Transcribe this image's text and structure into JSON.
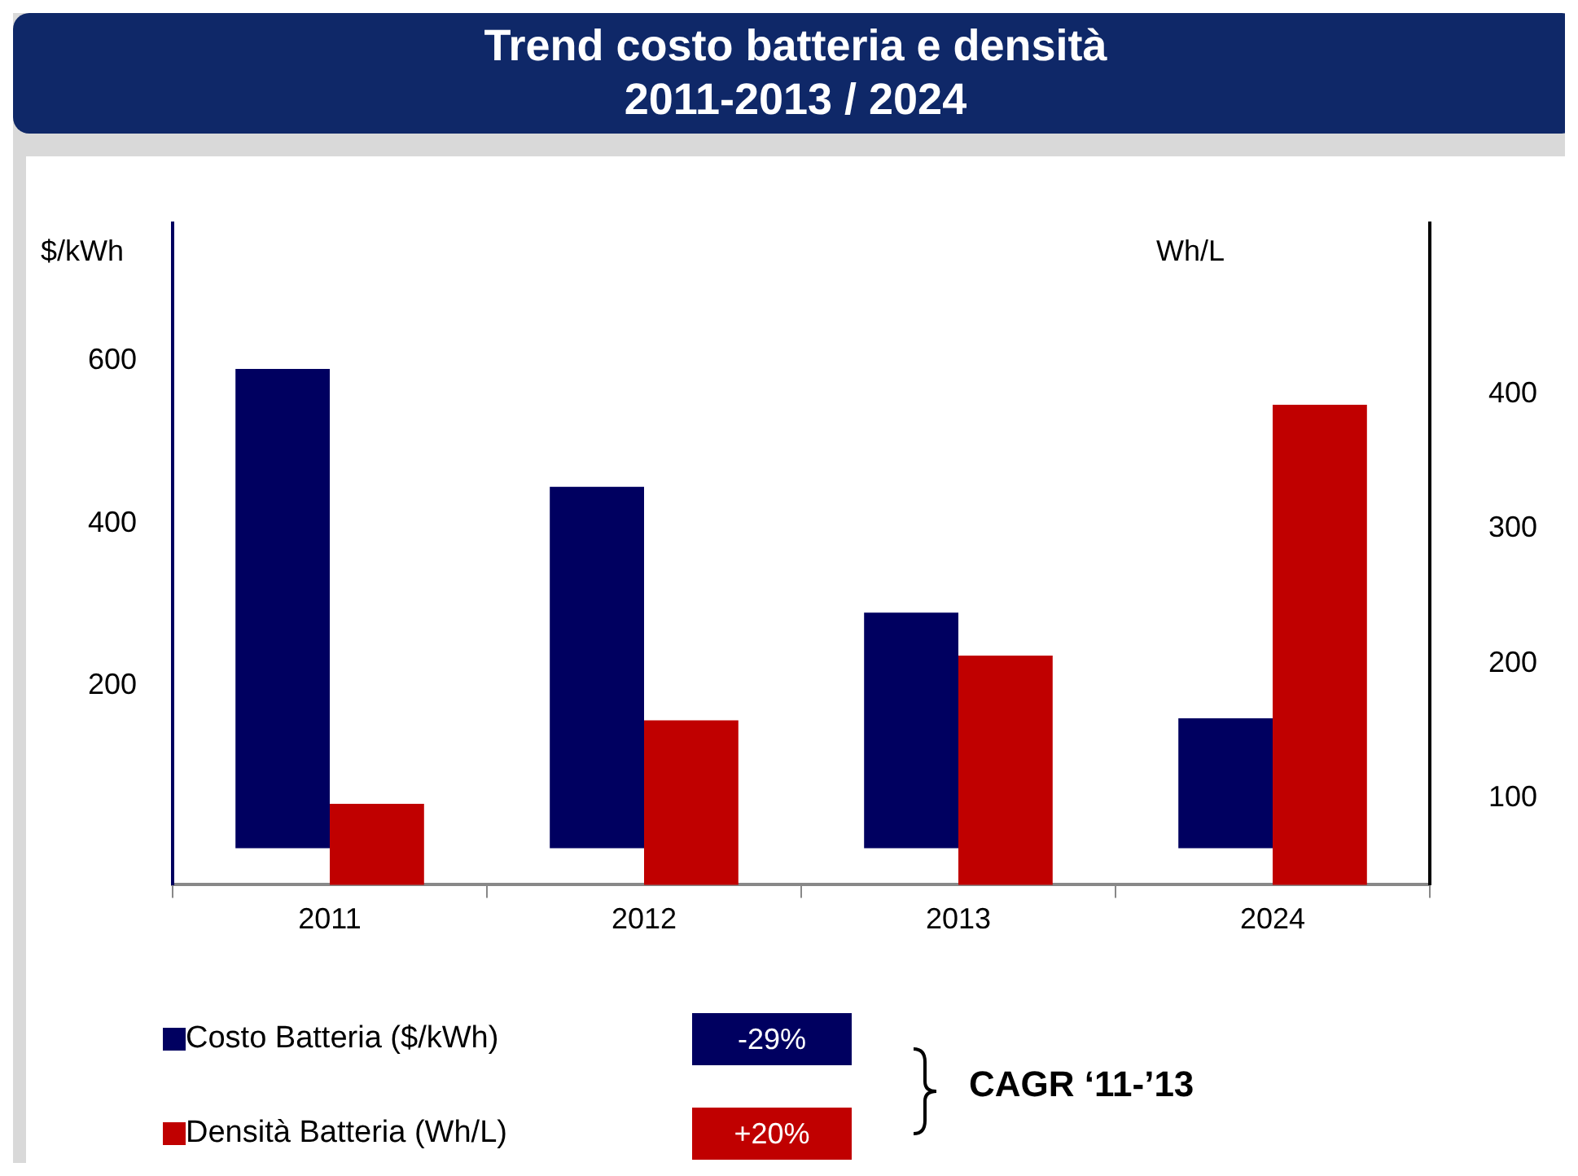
{
  "chart_data": {
    "type": "bar",
    "title": "Trend costo batteria e densità",
    "subtitle": "2011-2013 / 2024",
    "ylabel": "$/kWh",
    "y2label": "Wh/L",
    "categories": [
      "2011",
      "2012",
      "2013",
      "2024"
    ],
    "series": [
      {
        "name": "Costo Batteria ($/kWh)",
        "color": "#000060",
        "values": [
          590,
          445,
          290,
          160
        ]
      },
      {
        "name": "Densità Batteria (Wh/L)",
        "color": "#c00000",
        "values": [
          96,
          158,
          206,
          392
        ],
        "axis": "y2"
      }
    ],
    "ylim": [
      -45,
      770
    ],
    "yticks": [
      200,
      400,
      600
    ],
    "y2lim": [
      36,
      527
    ],
    "y2ticks": [
      100,
      200,
      300,
      400
    ],
    "grid": false,
    "legend": "bottom",
    "annotations": [
      "-29%",
      "+20%",
      "CAGR ‘11-’13"
    ]
  }
}
